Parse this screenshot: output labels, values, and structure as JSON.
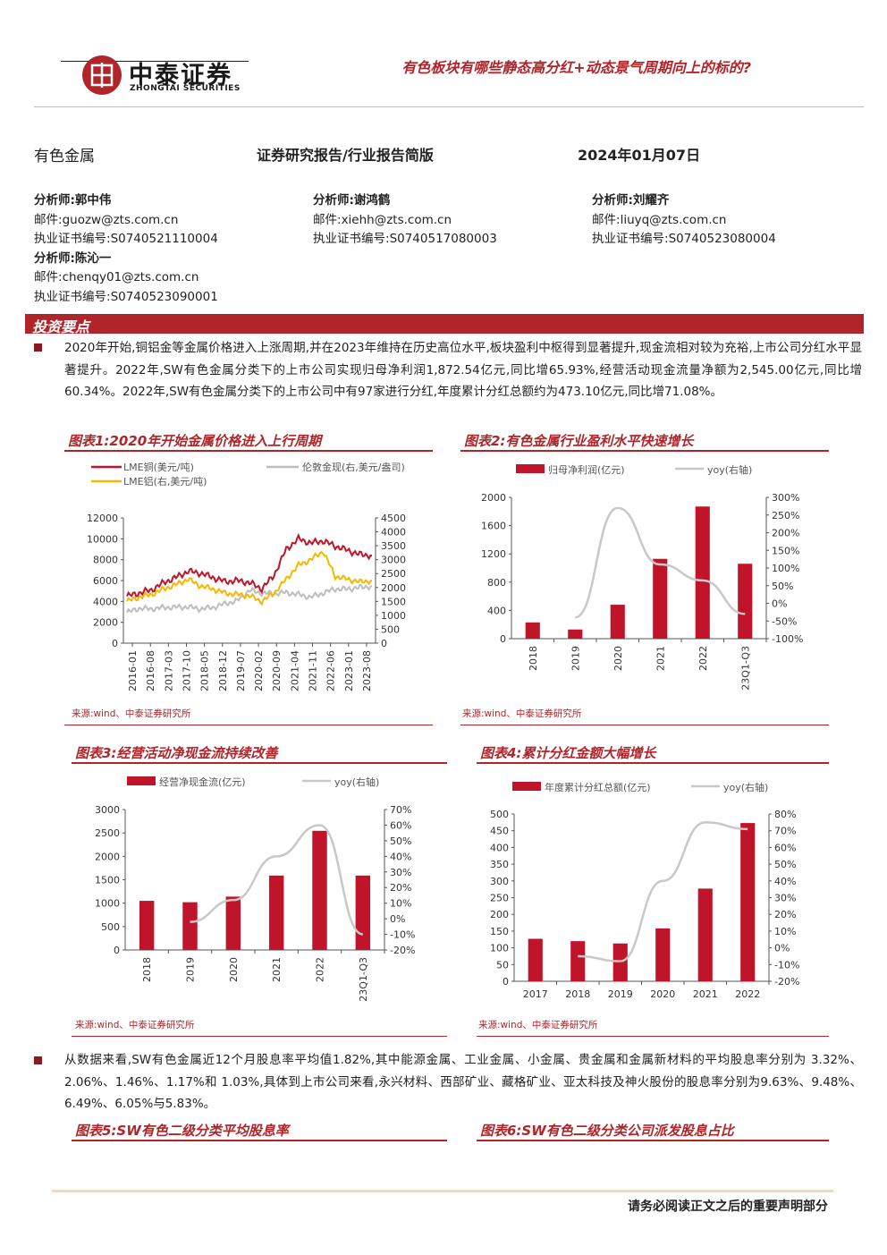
{
  "header": {
    "logo_cn": "中泰证券",
    "logo_en": "ZHONGTAI SECURITIES",
    "report_title": "有色板块有哪些静态高分红+动态景气周期向上的标的?"
  },
  "meta": {
    "sector": "有色金属",
    "report_type": "证券研究报告/行业报告简版",
    "date": "2024年01月07日"
  },
  "analysts": [
    {
      "label": "分析师:",
      "name": "郭中伟",
      "email_label": "邮件:",
      "email": "guozw@zts.com.cn",
      "cert_label": "执业证书编号:",
      "cert": "S0740521110004"
    },
    {
      "label": "分析师:",
      "name": "谢鸿鹤",
      "email_label": "邮件:",
      "email": "xiehh@zts.com.cn",
      "cert_label": "执业证书编号:",
      "cert": "S0740517080003"
    },
    {
      "label": "分析师:",
      "name": "刘耀齐",
      "email_label": "邮件:",
      "email": "liuyq@zts.com.cn",
      "cert_label": "执业证书编号:",
      "cert": "S0740523080004"
    },
    {
      "label": "分析师:",
      "name": "陈沁一",
      "email_label": "邮件:",
      "email": "chenqy01@zts.com.cn",
      "cert_label": "执业证书编号:",
      "cert": "S0740523090001"
    }
  ],
  "section": {
    "title": "投资要点"
  },
  "paragraphs": {
    "p1": "2020年开始,铜铝金等金属价格进入上涨周期,并在2023年维持在历史高位水平,板块盈利中枢得到显著提升,现金流相对较为充裕,上市公司分红水平显著提升。2022年,SW有色金属分类下的上市公司实现归母净利润1,872.54亿元,同比增65.93%,经营活动现金流量净额为2,545.00亿元,同比增60.34%。2022年,SW有色金属分类下的上市公司中有97家进行分红,年度累计分红总额约为473.10亿元,同比增71.08%。",
    "p2": "从数据来看,SW有色金属近12个月股息率平均值1.82%,其中能源金属、工业金属、小金属、贵金属和金属新材料的平均股息率分别为 3.32%、2.06%、1.46%、1.17%和 1.03%,具体到上市公司来看,永兴材料、西部矿业、藏格矿业、亚太科技及神火股份的股息率分别为9.63%、9.48%、6.49%、6.05%与5.83%。"
  },
  "figures": {
    "f1": {
      "title": "图表1:2020年开始金属价格进入上行周期",
      "source": "来源:wind、中泰证券研究所"
    },
    "f2": {
      "title": "图表2:有色金属行业盈利水平快速增长",
      "source": "来源:wind、中泰证券研究所"
    },
    "f3": {
      "title": "图表3:经营活动净现金流持续改善",
      "source": "来源:wind、中泰证券研究所"
    },
    "f4": {
      "title": "图表4:累计分红金额大幅增长",
      "source": "来源:wind、中泰证券研究所"
    },
    "f5": {
      "title": "图表5:SW有色二级分类平均股息率"
    },
    "f6": {
      "title": "图表6:SW有色二级分类公司派发股息占比"
    }
  },
  "colors": {
    "accent": "#b0252a",
    "bar": "#c0142a",
    "line_gray": "#c8c8c8",
    "copper": "#c0142a",
    "gold": "#bdbdbd",
    "aluminum": "#f5b800"
  },
  "chart_data": [
    {
      "id": "f1",
      "type": "line",
      "legend": [
        "LME铜(美元/吨)",
        "伦敦金现(右,美元/盎司)",
        "LME铝(右,美元/吨)"
      ],
      "x_ticks": [
        "2016-01",
        "2016-08",
        "2017-03",
        "2017-10",
        "2018-05",
        "2018-12",
        "2019-07",
        "2020-02",
        "2020-09",
        "2021-04",
        "2021-11",
        "2022-06",
        "2023-01",
        "2023-08"
      ],
      "y_left": {
        "ticks": [
          "0",
          "2000",
          "4000",
          "6000",
          "8000",
          "10000",
          "12000"
        ],
        "range": [
          0,
          12000
        ]
      },
      "y_right": {
        "ticks": [
          "0",
          "500",
          "1000",
          "1500",
          "2000",
          "2500",
          "3000",
          "3500",
          "4000",
          "4500"
        ],
        "range": [
          0,
          4500
        ]
      },
      "series": [
        {
          "name": "LME铜(美元/吨)",
          "axis": "left",
          "values": [
            4500,
            4800,
            5100,
            5800,
            6300,
            6900,
            6700,
            6300,
            5900,
            6000,
            5800,
            5200,
            6500,
            9000,
            10000,
            9600,
            9800,
            9300,
            8900,
            8500,
            8400
          ]
        },
        {
          "name": "伦敦金现(右,美元/盎司)",
          "axis": "right",
          "values": [
            1100,
            1250,
            1230,
            1280,
            1290,
            1300,
            1230,
            1280,
            1420,
            1520,
            1900,
            1800,
            1780,
            1820,
            1750,
            1650,
            1800,
            1950,
            1940,
            2000,
            2050
          ]
        },
        {
          "name": "LME铝(右,美元/吨)",
          "axis": "right",
          "values": [
            1500,
            1650,
            1750,
            1950,
            2100,
            2300,
            2050,
            1950,
            1800,
            1750,
            1700,
            1500,
            1800,
            2300,
            2800,
            3000,
            3300,
            2400,
            2300,
            2200,
            2250
          ]
        }
      ]
    },
    {
      "id": "f2",
      "type": "bar",
      "legend": [
        "归母净利润(亿元)",
        "yoy(右轴)"
      ],
      "categories": [
        "2018",
        "2019",
        "2020",
        "2021",
        "2022",
        "23Q1-Q3"
      ],
      "values": [
        230,
        130,
        480,
        1130,
        1870,
        1060
      ],
      "yoy": [
        null,
        -40,
        270,
        110,
        65,
        -30
      ],
      "y_left": {
        "ticks": [
          "0",
          "400",
          "800",
          "1200",
          "1600",
          "2000"
        ],
        "range": [
          0,
          2000
        ]
      },
      "y_right": {
        "ticks": [
          "-100%",
          "-50%",
          "0%",
          "50%",
          "100%",
          "150%",
          "200%",
          "250%",
          "300%"
        ],
        "range": [
          -100,
          300
        ]
      }
    },
    {
      "id": "f3",
      "type": "bar",
      "legend": [
        "经营净现金流(亿元)",
        "yoy(右轴)"
      ],
      "categories": [
        "2018",
        "2019",
        "2020",
        "2021",
        "2022",
        "23Q1-Q3"
      ],
      "values": [
        1050,
        1020,
        1140,
        1590,
        2545,
        1590
      ],
      "yoy": [
        null,
        -2,
        12,
        40,
        60,
        -10
      ],
      "y_left": {
        "ticks": [
          "0",
          "500",
          "1000",
          "1500",
          "2000",
          "2500",
          "3000"
        ],
        "range": [
          0,
          3000
        ]
      },
      "y_right": {
        "ticks": [
          "-20%",
          "-10%",
          "0%",
          "10%",
          "20%",
          "30%",
          "40%",
          "50%",
          "60%",
          "70%"
        ],
        "range": [
          -20,
          70
        ]
      }
    },
    {
      "id": "f4",
      "type": "bar",
      "legend": [
        "年度累计分红总额(亿元)",
        "yoy(右轴)"
      ],
      "categories": [
        "2017",
        "2018",
        "2019",
        "2020",
        "2021",
        "2022"
      ],
      "values": [
        127,
        120,
        113,
        158,
        277,
        473
      ],
      "yoy": [
        null,
        -5,
        -8,
        40,
        75,
        71
      ],
      "y_left": {
        "ticks": [
          "0",
          "50",
          "100",
          "150",
          "200",
          "250",
          "300",
          "350",
          "400",
          "450",
          "500"
        ],
        "range": [
          0,
          500
        ]
      },
      "y_right": {
        "ticks": [
          "-20%",
          "-10%",
          "0%",
          "10%",
          "20%",
          "30%",
          "40%",
          "50%",
          "60%",
          "70%",
          "80%"
        ],
        "range": [
          -20,
          80
        ]
      }
    }
  ],
  "footer": {
    "note": "请务必阅读正文之后的重要声明部分"
  }
}
